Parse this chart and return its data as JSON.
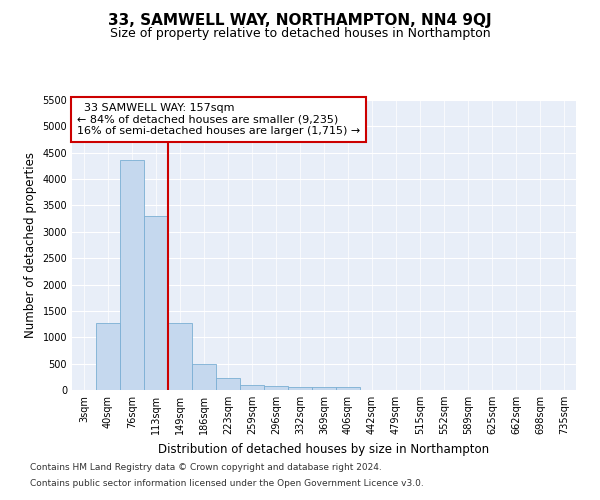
{
  "title": "33, SAMWELL WAY, NORTHAMPTON, NN4 9QJ",
  "subtitle": "Size of property relative to detached houses in Northampton",
  "xlabel": "Distribution of detached houses by size in Northampton",
  "ylabel": "Number of detached properties",
  "footnote1": "Contains HM Land Registry data © Crown copyright and database right 2024.",
  "footnote2": "Contains public sector information licensed under the Open Government Licence v3.0.",
  "bar_labels": [
    "3sqm",
    "40sqm",
    "76sqm",
    "113sqm",
    "149sqm",
    "186sqm",
    "223sqm",
    "259sqm",
    "296sqm",
    "332sqm",
    "369sqm",
    "406sqm",
    "442sqm",
    "479sqm",
    "515sqm",
    "552sqm",
    "589sqm",
    "625sqm",
    "662sqm",
    "698sqm",
    "735sqm"
  ],
  "bar_values": [
    0,
    1270,
    4360,
    3300,
    1270,
    490,
    230,
    100,
    80,
    60,
    60,
    60,
    0,
    0,
    0,
    0,
    0,
    0,
    0,
    0,
    0
  ],
  "bar_color": "#c5d8ee",
  "bar_edge_color": "#7bafd4",
  "vline_position": 3.5,
  "vline_color": "#cc0000",
  "ylim": [
    0,
    5500
  ],
  "yticks": [
    0,
    500,
    1000,
    1500,
    2000,
    2500,
    3000,
    3500,
    4000,
    4500,
    5000,
    5500
  ],
  "annotation_title": "33 SAMWELL WAY: 157sqm",
  "annotation_line1": "← 84% of detached houses are smaller (9,235)",
  "annotation_line2": "16% of semi-detached houses are larger (1,715) →",
  "annotation_box_color": "#cc0000",
  "plot_bg_color": "#e8eef8",
  "grid_color": "#ffffff",
  "title_fontsize": 11,
  "subtitle_fontsize": 9,
  "axis_label_fontsize": 8.5,
  "tick_fontsize": 7,
  "annotation_fontsize": 8,
  "footnote_fontsize": 6.5
}
